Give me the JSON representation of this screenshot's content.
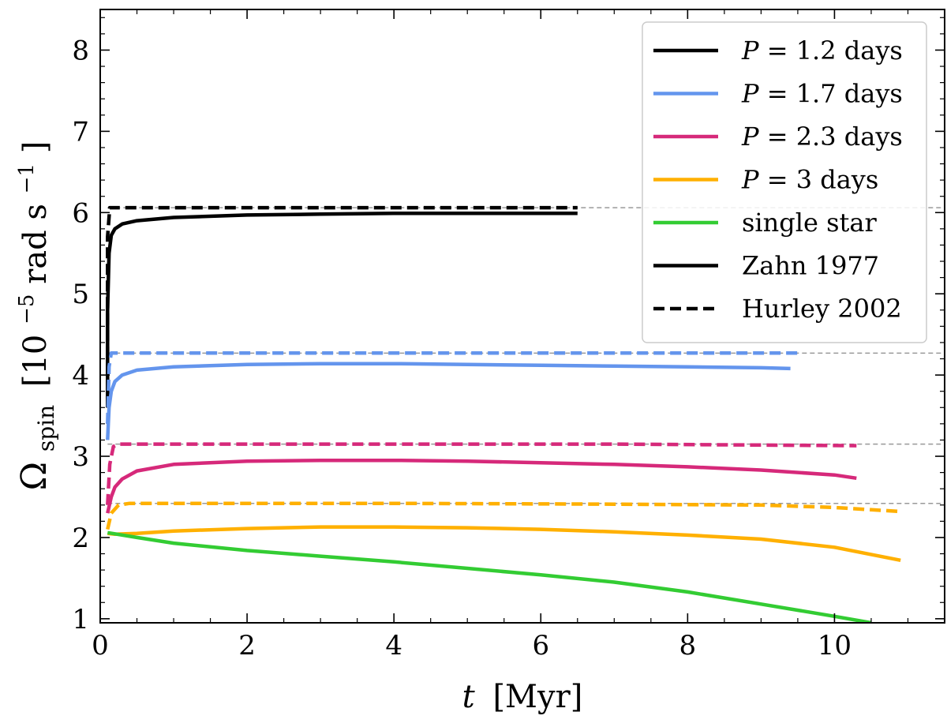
{
  "chart_data": {
    "type": "line",
    "xlabel_italic": "t",
    "xlabel_unit": "[Myr]",
    "ylabel_symbol": "Ω",
    "ylabel_sub": "spin",
    "ylabel_bracket_open": "[10",
    "ylabel_exp1": "−5",
    "ylabel_mid": " rad s",
    "ylabel_exp2": "−1",
    "ylabel_close": "]",
    "xlim": [
      0,
      11.5
    ],
    "ylim": [
      0.95,
      8.5
    ],
    "xticks": [
      0,
      2,
      4,
      6,
      8,
      10
    ],
    "yticks": [
      1,
      2,
      3,
      4,
      5,
      6,
      7,
      8
    ],
    "grid": false,
    "legend_position": "top-right",
    "colors": {
      "p12": "#000000",
      "p17": "#6495ED",
      "p23": "#D6297A",
      "p3": "#FFB000",
      "single": "#33CC33",
      "ref": "#999999"
    },
    "legend": [
      {
        "key": "p12",
        "prefix": "P",
        "label": " = 1.2 days",
        "style": "solid"
      },
      {
        "key": "p17",
        "prefix": "P",
        "label": " = 1.7 days",
        "style": "solid"
      },
      {
        "key": "p23",
        "prefix": "P",
        "label": " = 2.3 days",
        "style": "solid"
      },
      {
        "key": "p3",
        "prefix": "P",
        "label": " = 3 days",
        "style": "solid"
      },
      {
        "key": "single",
        "prefix": "",
        "label": "single star",
        "style": "solid"
      },
      {
        "key": "p12",
        "prefix": "",
        "label": "Zahn 1977",
        "style": "solid"
      },
      {
        "key": "p12",
        "prefix": "",
        "label": "Hurley 2002",
        "style": "dashed"
      }
    ],
    "reference_levels": [
      6.06,
      4.27,
      3.15,
      2.42
    ],
    "series": [
      {
        "key": "p12",
        "style": "solid",
        "x": [
          0.1,
          0.1,
          0.12,
          0.15,
          0.2,
          0.3,
          0.5,
          1,
          2,
          3,
          4,
          5,
          6,
          6.5
        ],
        "y": [
          3.6,
          4.8,
          5.5,
          5.72,
          5.8,
          5.86,
          5.9,
          5.94,
          5.97,
          5.98,
          5.99,
          5.99,
          5.99,
          5.99
        ]
      },
      {
        "key": "p12",
        "style": "dashed",
        "x": [
          0.1,
          0.1,
          0.13,
          0.2,
          1,
          3,
          5,
          6.5
        ],
        "y": [
          3.6,
          5.7,
          6.06,
          6.06,
          6.06,
          6.06,
          6.06,
          6.06
        ]
      },
      {
        "key": "p17",
        "style": "solid",
        "x": [
          0.1,
          0.12,
          0.15,
          0.2,
          0.3,
          0.5,
          1,
          2,
          3,
          4,
          5,
          6,
          7,
          8,
          9,
          9.4
        ],
        "y": [
          3.2,
          3.6,
          3.8,
          3.92,
          4.0,
          4.06,
          4.1,
          4.13,
          4.14,
          4.14,
          4.13,
          4.12,
          4.11,
          4.1,
          4.09,
          4.08
        ]
      },
      {
        "key": "p17",
        "style": "dashed",
        "x": [
          0.1,
          0.12,
          0.15,
          0.25,
          1,
          4,
          7,
          9.5
        ],
        "y": [
          3.4,
          4.1,
          4.27,
          4.27,
          4.27,
          4.27,
          4.27,
          4.27
        ]
      },
      {
        "key": "p23",
        "style": "solid",
        "x": [
          0.1,
          0.15,
          0.2,
          0.3,
          0.5,
          1,
          2,
          3,
          4,
          5,
          6,
          7,
          8,
          9,
          10,
          10.3
        ],
        "y": [
          2.3,
          2.5,
          2.62,
          2.72,
          2.82,
          2.9,
          2.94,
          2.95,
          2.95,
          2.94,
          2.92,
          2.9,
          2.87,
          2.83,
          2.77,
          2.73
        ]
      },
      {
        "key": "p23",
        "style": "dashed",
        "x": [
          0.1,
          0.13,
          0.18,
          0.25,
          1,
          4,
          7,
          10.3
        ],
        "y": [
          2.4,
          2.9,
          3.12,
          3.15,
          3.15,
          3.15,
          3.15,
          3.13
        ]
      },
      {
        "key": "p3",
        "style": "solid",
        "x": [
          0.1,
          0.2,
          0.5,
          1,
          2,
          3,
          4,
          5,
          6,
          7,
          8,
          9,
          10,
          10.9
        ],
        "y": [
          2.05,
          2.04,
          2.05,
          2.08,
          2.11,
          2.13,
          2.13,
          2.12,
          2.1,
          2.07,
          2.03,
          1.98,
          1.88,
          1.72
        ]
      },
      {
        "key": "p3",
        "style": "dashed",
        "x": [
          0.1,
          0.15,
          0.25,
          0.4,
          1,
          4,
          7,
          9,
          10,
          10.9
        ],
        "y": [
          2.1,
          2.3,
          2.4,
          2.42,
          2.42,
          2.42,
          2.41,
          2.4,
          2.37,
          2.32
        ]
      },
      {
        "key": "single",
        "style": "solid",
        "x": [
          0.1,
          0.5,
          1,
          2,
          3,
          4,
          5,
          6,
          7,
          8,
          9,
          10,
          10.5
        ],
        "y": [
          2.06,
          2.0,
          1.93,
          1.84,
          1.77,
          1.7,
          1.62,
          1.54,
          1.45,
          1.33,
          1.18,
          1.03,
          0.95
        ]
      }
    ]
  }
}
